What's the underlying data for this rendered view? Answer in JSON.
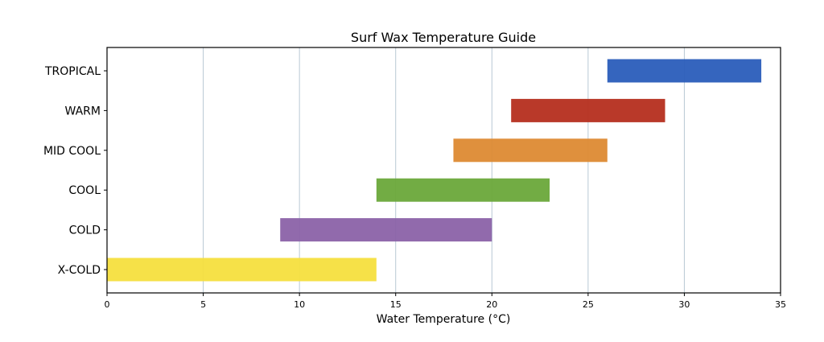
{
  "chart_data": {
    "type": "bar",
    "orientation": "horizontal-range",
    "title": "Surf Wax Temperature Guide",
    "xlabel": "Water Temperature (°C)",
    "ylabel": "",
    "xlim": [
      0,
      35
    ],
    "xticks": [
      0,
      5,
      10,
      15,
      20,
      25,
      30,
      35
    ],
    "grid": "vertical",
    "categories": [
      "X-COLD",
      "COLD",
      "COOL",
      "MID COOL",
      "WARM",
      "TROPICAL"
    ],
    "series": [
      {
        "name": "X-COLD",
        "start": 0,
        "end": 14,
        "color": "#f5df3e"
      },
      {
        "name": "COLD",
        "start": 9,
        "end": 20,
        "color": "#8b62a8"
      },
      {
        "name": "COOL",
        "start": 14,
        "end": 23,
        "color": "#6aa83a"
      },
      {
        "name": "MID COOL",
        "start": 18,
        "end": 26,
        "color": "#dd8a33"
      },
      {
        "name": "WARM",
        "start": 21,
        "end": 29,
        "color": "#b52e1e"
      },
      {
        "name": "TROPICAL",
        "start": 26,
        "end": 34,
        "color": "#2a5dbb"
      }
    ]
  }
}
